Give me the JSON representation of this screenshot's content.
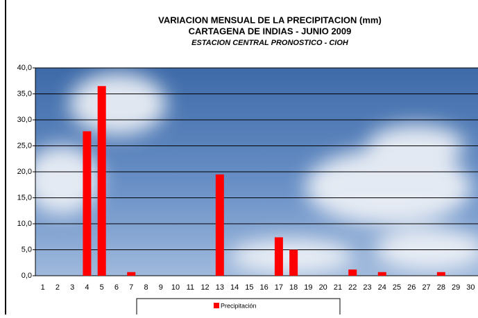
{
  "chart_data": {
    "type": "bar",
    "title": "VARIACION MENSUAL DE LA PRECIPITACION (mm)",
    "subtitle": "CARTAGENA DE INDIAS - JUNIO 2009",
    "caption": "ESTACION CENTRAL PRONOSTICO - CIOH",
    "categories": [
      "1",
      "2",
      "3",
      "4",
      "5",
      "6",
      "7",
      "8",
      "9",
      "10",
      "11",
      "12",
      "13",
      "14",
      "15",
      "16",
      "17",
      "18",
      "19",
      "20",
      "21",
      "22",
      "23",
      "24",
      "25",
      "26",
      "27",
      "28",
      "29",
      "30"
    ],
    "series": [
      {
        "name": "Precipitación",
        "color": "#ff0000",
        "values": [
          0,
          0,
          0,
          27.8,
          36.5,
          0,
          0.7,
          0,
          0,
          0,
          0,
          0,
          19.5,
          0,
          0,
          0,
          7.4,
          5.0,
          0,
          0,
          0,
          1.2,
          0,
          0.7,
          0,
          0,
          0,
          0.7,
          0,
          0
        ]
      }
    ],
    "ylim": [
      0,
      40
    ],
    "yticks": [
      {
        "value": 0,
        "label": "0,0"
      },
      {
        "value": 5,
        "label": "5,0"
      },
      {
        "value": 10,
        "label": "10,0"
      },
      {
        "value": 15,
        "label": "15,0"
      },
      {
        "value": 20,
        "label": "20,0"
      },
      {
        "value": 25,
        "label": "25,0"
      },
      {
        "value": 30,
        "label": "30,0"
      },
      {
        "value": 35,
        "label": "35,0"
      },
      {
        "value": 40,
        "label": "40,0"
      }
    ],
    "grid": true
  }
}
